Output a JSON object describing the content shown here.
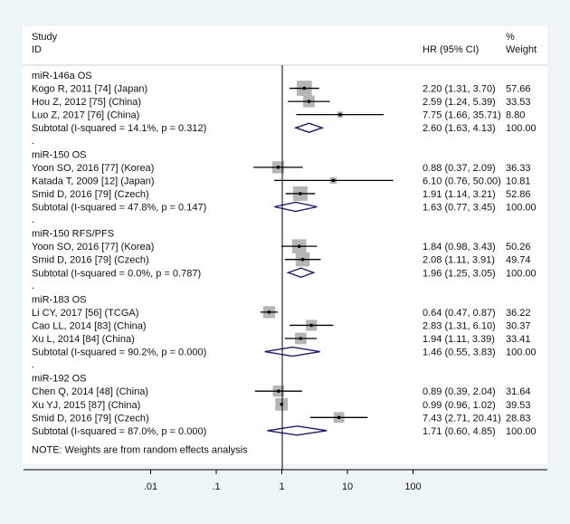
{
  "chart_data": {
    "type": "forest",
    "xscale": "log",
    "xlim": [
      0.003,
      300
    ],
    "null_line": 1,
    "xticks": [
      ".01",
      ".1",
      "1",
      "10",
      "100"
    ],
    "xtick_values": [
      0.01,
      0.1,
      1,
      10,
      100
    ],
    "header": {
      "study": "Study",
      "id": "ID",
      "hr": "HR (95% CI)",
      "pct": "%",
      "weight": "Weight"
    },
    "colors": {
      "box": "#b5b5b5",
      "diamond": "#1c1c6b",
      "panel": "#ffffff",
      "background": "#eef5f8"
    },
    "groups": [
      {
        "label": "miR-146a OS",
        "studies": [
          {
            "label": "Kogo R, 2011 [74] (Japan)",
            "hr": 2.2,
            "lo": 1.31,
            "hi": 3.7,
            "ci": "2.20 (1.31, 3.70)",
            "weight": "57.66"
          },
          {
            "label": "Hou Z, 2012 [75] (China)",
            "hr": 2.59,
            "lo": 1.24,
            "hi": 5.39,
            "ci": "2.59 (1.24, 5.39)",
            "weight": "33.53"
          },
          {
            "label": "Luo Z, 2017 [76] (China)",
            "hr": 7.75,
            "lo": 1.66,
            "hi": 35.71,
            "ci": "7.75 (1.66, 35.71)",
            "weight": "8.80"
          }
        ],
        "subtotal": {
          "label": "Subtotal  (I-squared = 14.1%, p = 0.312)",
          "hr": 2.6,
          "lo": 1.63,
          "hi": 4.13,
          "ci": "2.60 (1.63, 4.13)",
          "weight": "100.00"
        }
      },
      {
        "label": "miR-150 OS",
        "studies": [
          {
            "label": "Yoon SO, 2016 [77] (Korea)",
            "hr": 0.88,
            "lo": 0.37,
            "hi": 2.09,
            "ci": "0.88 (0.37, 2.09)",
            "weight": "36.33"
          },
          {
            "label": "Katada T, 2009 [12] (Japan)",
            "hr": 6.1,
            "lo": 0.76,
            "hi": 50.0,
            "ci": "6.10 (0.76, 50.00)",
            "weight": "10.81"
          },
          {
            "label": "Smid D, 2016 [79] (Czech)",
            "hr": 1.91,
            "lo": 1.14,
            "hi": 3.21,
            "ci": "1.91 (1.14, 3.21)",
            "weight": "52.86"
          }
        ],
        "subtotal": {
          "label": "Subtotal  (I-squared = 47.8%, p = 0.147)",
          "hr": 1.63,
          "lo": 0.77,
          "hi": 3.45,
          "ci": "1.63 (0.77, 3.45)",
          "weight": "100.00"
        }
      },
      {
        "label": "miR-150 RFS/PFS",
        "studies": [
          {
            "label": "Yoon SO, 2016 [77] (Korea)",
            "hr": 1.84,
            "lo": 0.98,
            "hi": 3.43,
            "ci": "1.84 (0.98, 3.43)",
            "weight": "50.26"
          },
          {
            "label": "Smid D, 2016 [79] (Czech)",
            "hr": 2.08,
            "lo": 1.11,
            "hi": 3.91,
            "ci": "2.08 (1.11, 3.91)",
            "weight": "49.74"
          }
        ],
        "subtotal": {
          "label": "Subtotal  (I-squared = 0.0%, p = 0.787)",
          "hr": 1.96,
          "lo": 1.25,
          "hi": 3.05,
          "ci": "1.96 (1.25, 3.05)",
          "weight": "100.00"
        }
      },
      {
        "label": "miR-183 OS",
        "studies": [
          {
            "label": "Li CY, 2017 [56] (TCGA)",
            "hr": 0.64,
            "lo": 0.47,
            "hi": 0.87,
            "ci": "0.64 (0.47, 0.87)",
            "weight": "36.22"
          },
          {
            "label": "Cao LL, 2014 [83] (China)",
            "hr": 2.83,
            "lo": 1.31,
            "hi": 6.1,
            "ci": "2.83 (1.31, 6.10)",
            "weight": "30.37"
          },
          {
            "label": "Xu L, 2014 [84] (China)",
            "hr": 1.94,
            "lo": 1.11,
            "hi": 3.39,
            "ci": "1.94 (1.11, 3.39)",
            "weight": "33.41"
          }
        ],
        "subtotal": {
          "label": "Subtotal  (I-squared = 90.2%, p = 0.000)",
          "hr": 1.46,
          "lo": 0.55,
          "hi": 3.83,
          "ci": "1.46 (0.55, 3.83)",
          "weight": "100.00"
        }
      },
      {
        "label": "miR-192 OS",
        "studies": [
          {
            "label": "Chen Q, 2014 [48] (China)",
            "hr": 0.89,
            "lo": 0.39,
            "hi": 2.04,
            "ci": "0.89 (0.39, 2.04)",
            "weight": "31.64"
          },
          {
            "label": "Xu YJ, 2015 [87] (China)",
            "hr": 0.99,
            "lo": 0.96,
            "hi": 1.02,
            "ci": "0.99 (0.96, 1.02)",
            "weight": "39.53"
          },
          {
            "label": "Smid D, 2016 [79] (Czech)",
            "hr": 7.43,
            "lo": 2.71,
            "hi": 20.41,
            "ci": "7.43 (2.71, 20.41)",
            "weight": "28.83"
          }
        ],
        "subtotal": {
          "label": "Subtotal  (I-squared = 87.0%, p = 0.000)",
          "hr": 1.71,
          "lo": 0.6,
          "hi": 4.85,
          "ci": "1.71 (0.60, 4.85)",
          "weight": "100.00"
        }
      }
    ],
    "separator": ".",
    "note": "NOTE: Weights are from random effects analysis"
  }
}
